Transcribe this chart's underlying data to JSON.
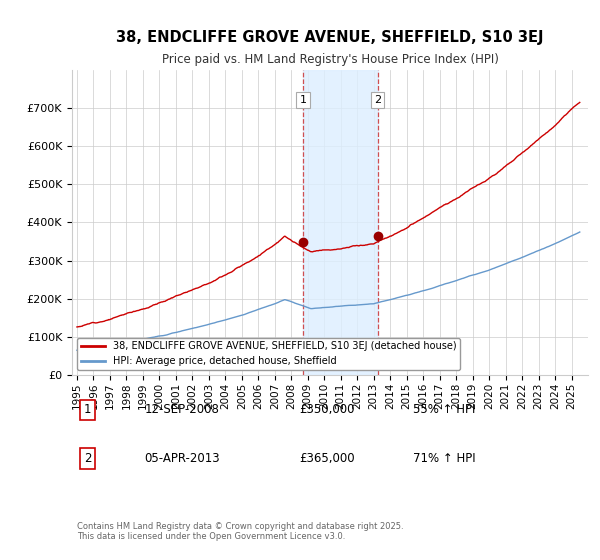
{
  "title_line1": "38, ENDCLIFFE GROVE AVENUE, SHEFFIELD, S10 3EJ",
  "title_line2": "Price paid vs. HM Land Registry's House Price Index (HPI)",
  "ylim": [
    0,
    800000
  ],
  "yticks": [
    0,
    100000,
    200000,
    300000,
    400000,
    500000,
    600000,
    700000
  ],
  "ytick_labels": [
    "£0",
    "£100K",
    "£200K",
    "£300K",
    "£400K",
    "£500K",
    "£600K",
    "£700K"
  ],
  "red_line_label": "38, ENDCLIFFE GROVE AVENUE, SHEFFIELD, S10 3EJ (detached house)",
  "blue_line_label": "HPI: Average price, detached house, Sheffield",
  "red_color": "#cc0000",
  "blue_color": "#6699cc",
  "marker1_date": 2008.71,
  "marker1_price": 350000,
  "marker1_text": "12-SEP-2008",
  "marker1_amount": "£350,000",
  "marker1_hpi": "55% ↑ HPI",
  "marker2_date": 2013.25,
  "marker2_price": 365000,
  "marker2_text": "05-APR-2013",
  "marker2_amount": "£365,000",
  "marker2_hpi": "71% ↑ HPI",
  "shaded_color": "#ddeeff",
  "grid_color": "#cccccc",
  "background_color": "#ffffff",
  "footnote": "Contains HM Land Registry data © Crown copyright and database right 2025.\nThis data is licensed under the Open Government Licence v3.0."
}
